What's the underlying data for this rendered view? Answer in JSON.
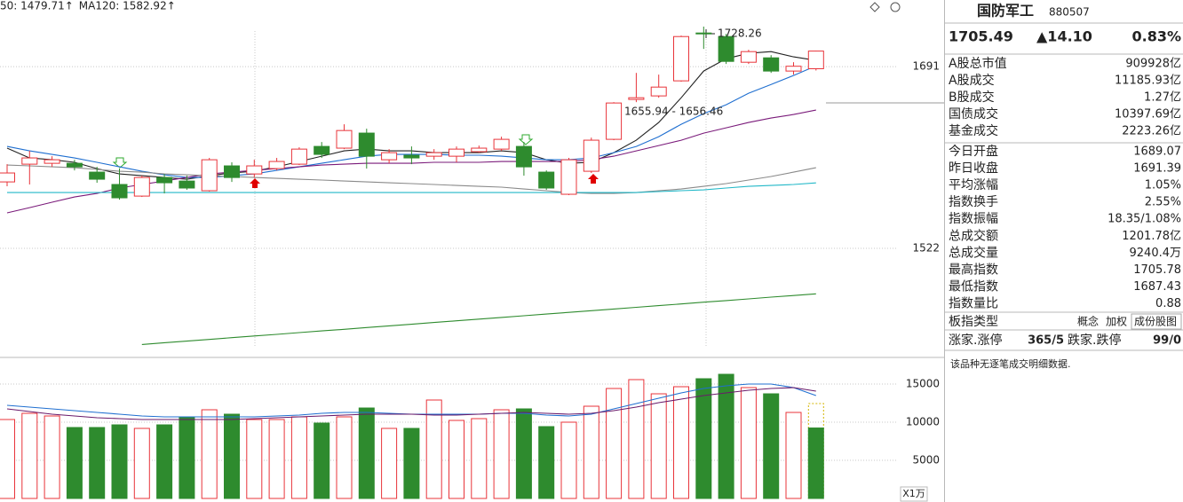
{
  "chart_data": [
    {
      "type": "candlestick",
      "indicator_labels": [
        {
          "text": "50: 1479.71",
          "arrow": "↑",
          "color": "#2e8b2e"
        },
        {
          "text": "MA120: 1582.92",
          "arrow": "↑",
          "color": "#22b8c8"
        }
      ],
      "open": [
        1583.8,
        1600.3,
        1601.1,
        1601.1,
        1592.9,
        1581.4,
        1570.6,
        1587.9,
        1584.6,
        1575.6,
        1598.7,
        1591.2,
        1596.2,
        1600.3,
        1616.8,
        1615.2,
        1629.2,
        1604.4,
        1608.6,
        1607.7,
        1607.7,
        1611.9,
        1614.3,
        1616.8,
        1592.9,
        1572.3,
        1593.7,
        1623.4,
        1660.5,
        1663.8,
        1677.8,
        1722.3,
        1719.0,
        1695.1,
        1699.2,
        1686.9,
        1689.07
      ],
      "high": [
        1600.3,
        1612.7,
        1607.7,
        1604.4,
        1597.8,
        1596.2,
        1589.6,
        1591.2,
        1589.6,
        1606.1,
        1602.0,
        1604.4,
        1606.1,
        1616.0,
        1620.9,
        1637.4,
        1633.3,
        1614.3,
        1616.8,
        1614.3,
        1616.8,
        1617.6,
        1625.9,
        1620.9,
        1594.5,
        1606.1,
        1625.0,
        1658.0,
        1685.2,
        1683.6,
        1719.9,
        1728.26,
        1721.5,
        1706.7,
        1701.7,
        1695.1,
        1705.78
      ],
      "low": [
        1579.7,
        1581.4,
        1597.8,
        1594.5,
        1583.0,
        1567.3,
        1569.8,
        1573.1,
        1576.4,
        1574.8,
        1583.8,
        1587.9,
        1594.5,
        1599.5,
        1606.1,
        1614.3,
        1596.2,
        1601.1,
        1600.3,
        1604.4,
        1602.0,
        1611.0,
        1612.7,
        1589.6,
        1576.4,
        1571.5,
        1592.1,
        1622.6,
        1658.0,
        1662.1,
        1677.0,
        1707.5,
        1693.5,
        1693.5,
        1685.2,
        1683.6,
        1687.43
      ],
      "close": [
        1592.1,
        1606.1,
        1604.4,
        1597.8,
        1586.3,
        1569.0,
        1587.9,
        1583.0,
        1578.1,
        1604.4,
        1587.9,
        1598.7,
        1602.8,
        1614.3,
        1609.4,
        1631.6,
        1607.7,
        1611.0,
        1606.1,
        1611.0,
        1614.3,
        1615.2,
        1623.4,
        1597.8,
        1578.1,
        1604.4,
        1622.6,
        1657.2,
        1662.1,
        1672.0,
        1719.0,
        1721.5,
        1695.9,
        1705.0,
        1686.9,
        1691.39,
        1705.49
      ],
      "up_color": "#e8343a",
      "down_color": "#2e8b2e",
      "lines": [
        {
          "color": "#222222",
          "values": [
            1615.2,
            1606.1,
            1604.4,
            1602.0,
            1596.2,
            1591.2,
            1589.6,
            1587.9,
            1586.3,
            1589.6,
            1592.1,
            1593.7,
            1597.8,
            1602.8,
            1607.7,
            1612.7,
            1614.3,
            1612.7,
            1612.7,
            1611.0,
            1611.0,
            1611.0,
            1612.7,
            1611.0,
            1604.4,
            1601.1,
            1602.0,
            1611.0,
            1622.6,
            1639.1,
            1662.1,
            1686.9,
            1698.4,
            1703.4,
            1705.0,
            1700.1,
            1696.8
          ]
        },
        {
          "color": "#1f6fd0",
          "values": [
            1616.8,
            1612.7,
            1609.4,
            1606.1,
            1602.0,
            1597.8,
            1593.7,
            1590.4,
            1587.9,
            1587.9,
            1589.6,
            1591.2,
            1594.5,
            1597.8,
            1601.1,
            1604.4,
            1607.7,
            1609.4,
            1609.4,
            1609.4,
            1608.6,
            1608.6,
            1607.7,
            1606.1,
            1604.4,
            1604.4,
            1606.1,
            1611.0,
            1616.8,
            1625.9,
            1637.4,
            1647.3,
            1655.6,
            1666.3,
            1674.5,
            1682.8,
            1691.8
          ]
        },
        {
          "color": "#7a1a7a",
          "values": [
            1555.0,
            1559.9,
            1564.9,
            1569.8,
            1573.1,
            1578.1,
            1581.4,
            1584.6,
            1587.9,
            1591.2,
            1592.9,
            1594.5,
            1596.2,
            1597.8,
            1599.5,
            1600.3,
            1601.1,
            1601.1,
            1601.1,
            1602.0,
            1602.0,
            1602.0,
            1602.8,
            1602.8,
            1602.8,
            1602.8,
            1604.4,
            1607.7,
            1612.7,
            1617.6,
            1622.6,
            1629.2,
            1634.1,
            1639.1,
            1643.2,
            1646.5,
            1650.6
          ]
        },
        {
          "color": "#8a8a8a",
          "values": [
            1599.5,
            1598.7,
            1597.8,
            1597.0,
            1595.4,
            1593.7,
            1592.9,
            1591.2,
            1590.4,
            1589.6,
            1588.8,
            1587.9,
            1587.1,
            1586.3,
            1585.5,
            1584.6,
            1583.8,
            1583.0,
            1582.2,
            1581.4,
            1580.5,
            1579.7,
            1578.9,
            1577.2,
            1575.6,
            1573.9,
            1573.1,
            1573.1,
            1573.9,
            1575.6,
            1577.2,
            1579.7,
            1582.2,
            1585.5,
            1588.8,
            1592.9,
            1597.0
          ]
        },
        {
          "color": "#22b8c8",
          "values": [
            1573.9,
            1573.9,
            1573.9,
            1573.9,
            1573.9,
            1573.9,
            1573.9,
            1573.9,
            1573.9,
            1573.9,
            1573.9,
            1573.9,
            1573.9,
            1573.9,
            1573.9,
            1573.9,
            1573.9,
            1573.9,
            1573.9,
            1573.9,
            1573.9,
            1573.9,
            1573.9,
            1573.9,
            1573.9,
            1573.9,
            1573.9,
            1573.9,
            1573.9,
            1574.8,
            1575.6,
            1576.4,
            1578.1,
            1579.7,
            1580.5,
            1581.4,
            1582.92
          ]
        },
        {
          "color": "#2e8b2e",
          "values": [
            null,
            null,
            null,
            null,
            null,
            null,
            1432.6,
            1434.2,
            1435.7,
            1437.3,
            1438.9,
            1440.5,
            1442.0,
            1443.6,
            1445.2,
            1446.7,
            1448.3,
            1449.9,
            1451.4,
            1453.0,
            1454.6,
            1456.2,
            1457.7,
            1459.3,
            1460.9,
            1462.4,
            1464.0,
            1465.6,
            1467.1,
            1468.7,
            1470.3,
            1471.9,
            1473.4,
            1475.0,
            1476.6,
            1478.1,
            1479.71
          ]
        }
      ],
      "annotations": [
        {
          "text": "1655.94 - 1656.46"
        },
        {
          "text": "1728.26"
        }
      ],
      "ylim": [
        1423,
        1753
      ],
      "yticks": [
        1522,
        1691
      ],
      "grid": true
    },
    {
      "type": "bar",
      "values": [
        10350,
        11163,
        10814,
        9302,
        9302,
        9651,
        9186,
        9651,
        10698,
        11628,
        11047,
        10349,
        10349,
        10698,
        9884,
        10698,
        11860,
        9186,
        9186,
        12907,
        10233,
        10465,
        11628,
        11744,
        9419,
        10000,
        12093,
        14419,
        15582,
        13721,
        14651,
        15698,
        16279,
        14535,
        13721,
        11279,
        9240.4
      ],
      "up": [
        true,
        true,
        true,
        false,
        false,
        false,
        true,
        false,
        false,
        true,
        false,
        true,
        true,
        true,
        false,
        true,
        false,
        true,
        false,
        true,
        true,
        true,
        true,
        false,
        false,
        true,
        true,
        true,
        true,
        true,
        true,
        false,
        false,
        true,
        false,
        true,
        false
      ],
      "up_color": "#e8343a",
      "down_color": "#2e8b2e",
      "projected_value": 12440,
      "projected_color": "#d4b400",
      "lines": [
        {
          "color": "#1f6fd0",
          "values": [
            12209,
            11977,
            11744,
            11512,
            11279,
            11047,
            10814,
            10698,
            10698,
            10698,
            10698,
            10698,
            10814,
            10930,
            11163,
            11279,
            11279,
            11163,
            11047,
            11047,
            11047,
            11047,
            11163,
            11163,
            10930,
            10814,
            11047,
            11744,
            12442,
            13140,
            13837,
            14419,
            14767,
            15000,
            15000,
            14535,
            13488
          ]
        },
        {
          "color": "#6a1a6a",
          "values": [
            11744,
            11395,
            11047,
            10814,
            10581,
            10465,
            10349,
            10349,
            10349,
            10349,
            10349,
            10465,
            10581,
            10698,
            10814,
            10930,
            11047,
            11047,
            11047,
            10930,
            10930,
            11047,
            11163,
            11279,
            11163,
            11047,
            11163,
            11512,
            11977,
            12558,
            13023,
            13488,
            13837,
            14186,
            14419,
            14535,
            14070
          ]
        }
      ],
      "unit_label": "X1万",
      "ylim": [
        0,
        18490
      ],
      "yticks": [
        5000,
        10000,
        15000
      ],
      "grid": true
    }
  ],
  "panel": {
    "name": "国防军工",
    "code": "880507",
    "price": "1705.49",
    "change": "▲14.10",
    "change_pct": "0.83%",
    "price_color": "#e02020",
    "blocks": [
      [
        {
          "label": "A股总市值",
          "value": "909928亿"
        },
        {
          "label": "A股成交",
          "value": "11185.93亿"
        },
        {
          "label": "B股成交",
          "value": "1.27亿"
        },
        {
          "label": "国债成交",
          "value": "10397.69亿"
        },
        {
          "label": "基金成交",
          "value": "2223.26亿"
        }
      ],
      [
        {
          "label": "今日开盘",
          "value": "1689.07"
        },
        {
          "label": "昨日收盘",
          "value": "1691.39"
        },
        {
          "label": "平均涨幅",
          "value": "1.05%",
          "color": "#e02020"
        },
        {
          "label": "指数换手",
          "value": "2.55%"
        },
        {
          "label": "指数振幅",
          "value": "18.35/1.08%"
        },
        {
          "label": "总成交额",
          "value": "1201.78亿"
        },
        {
          "label": "总成交量",
          "value": "9240.4万"
        },
        {
          "label": "最高指数",
          "value": "1705.78",
          "color": "#e02020"
        },
        {
          "label": "最低指数",
          "value": "1687.43",
          "color": "#1a9a1a"
        },
        {
          "label": "指数量比",
          "value": "0.88",
          "color": "#1a9a1a"
        }
      ]
    ],
    "type_row": {
      "label": "板指类型",
      "buttons": [
        "概念",
        "加权",
        "成份股图"
      ]
    },
    "limit_row": {
      "up_label": "涨家.涨停",
      "up_value": "365/5",
      "down_label": "跌家.跌停",
      "down_value": "99/0",
      "up_color": "#e02020",
      "down_color": "#1a9a1a"
    },
    "note": "该品种无逐笔成交明细数据."
  }
}
